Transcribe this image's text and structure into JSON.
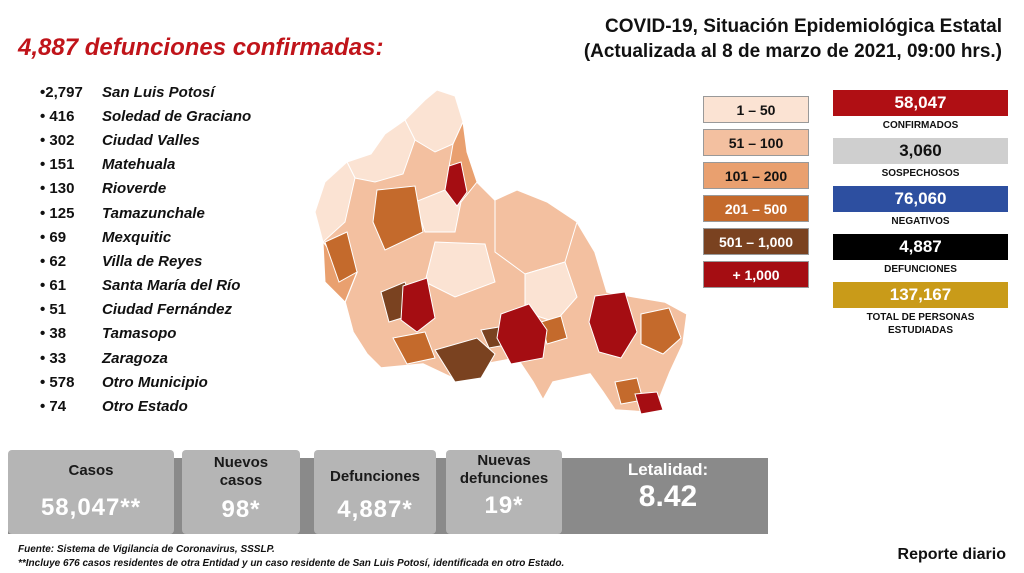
{
  "headline": "4,887 defunciones confirmadas:",
  "title": {
    "line1": "COVID-19, Situación Epidemiológica Estatal",
    "line2": "(Actualizada al 8 de marzo de 2021, 09:00 hrs.)"
  },
  "deaths_by_municipality": [
    {
      "count": "•2,797",
      "name": "San Luis Potosí"
    },
    {
      "count": "• 416",
      "name": "Soledad de Graciano"
    },
    {
      "count": "• 302",
      "name": "Ciudad Valles"
    },
    {
      "count": "• 151",
      "name": "Matehuala"
    },
    {
      "count": "• 130",
      "name": "Rioverde"
    },
    {
      "count": "• 125",
      "name": "Tamazunchale"
    },
    {
      "count": "• 69",
      "name": "Mexquitic"
    },
    {
      "count": "• 62",
      "name": "Villa de Reyes"
    },
    {
      "count": "• 61",
      "name": "Santa María del Río"
    },
    {
      "count": "• 51",
      "name": "Ciudad Fernández"
    },
    {
      "count": "• 38",
      "name": "Tamasopo"
    },
    {
      "count": "• 33",
      "name": "Zaragoza"
    },
    {
      "count": "• 578",
      "name": "Otro Municipio"
    },
    {
      "count": "• 74",
      "name": "Otro Estado"
    }
  ],
  "legend": [
    {
      "label": "1 – 50",
      "color": "#fbe3d3",
      "text_color": "#111111"
    },
    {
      "label": "51 – 100",
      "color": "#f3c0a0",
      "text_color": "#111111"
    },
    {
      "label": "101 – 200",
      "color": "#e9a06f",
      "text_color": "#111111"
    },
    {
      "label": "201 – 500",
      "color": "#c46a2c",
      "text_color": "#ffffff"
    },
    {
      "label": "501 – 1,000",
      "color": "#7a4220",
      "text_color": "#ffffff"
    },
    {
      "label": "+ 1,000",
      "color": "#a50d12",
      "text_color": "#ffffff"
    }
  ],
  "stats": [
    {
      "value": "58,047",
      "label": "CONFIRMADOS",
      "color": "#b00f14",
      "text_color": "#ffffff"
    },
    {
      "value": "3,060",
      "label": "SOSPECHOSOS",
      "color": "#cfcfcf",
      "text_color": "#111111"
    },
    {
      "value": "76,060",
      "label": "NEGATIVOS",
      "color": "#2d4fa0",
      "text_color": "#ffffff"
    },
    {
      "value": "4,887",
      "label": "DEFUNCIONES",
      "color": "#000000",
      "text_color": "#ffffff"
    },
    {
      "value": "137,167",
      "label": "TOTAL DE PERSONAS ESTUDIADAS",
      "color": "#c99b19",
      "text_color": "#ffffff"
    }
  ],
  "summary": {
    "casos_label": "Casos",
    "casos_value": "58,047**",
    "nuevos_casos_label": "Nuevos casos",
    "nuevos_casos_value": "98*",
    "defunciones_label": "Defunciones",
    "defunciones_value": "4,887*",
    "nuevas_defunciones_label": "Nuevas defunciones",
    "nuevas_defunciones_value": "19*",
    "letalidad_label": "Letalidad:",
    "letalidad_value": "8.42"
  },
  "footer": {
    "source": "Fuente: Sistema de Vigilancia de Coronavirus, SSSLP.",
    "note": "**Incluye 676 casos residentes de otra Entidad y un caso residente de San Luis Potosí, identificada en otro Estado."
  },
  "report_label": "Reporte diario"
}
